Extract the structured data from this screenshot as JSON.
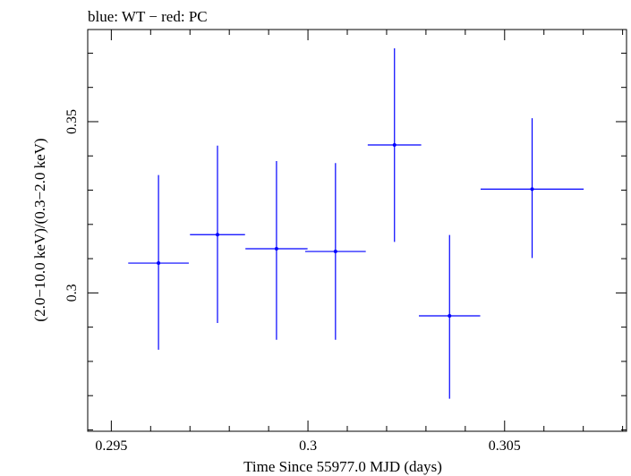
{
  "chart_data": {
    "type": "scatter",
    "title": "blue: WT − red: PC",
    "xlabel": "Time Since 55977.0 MJD (days)",
    "ylabel": "(2.0−10.0 keV)/(0.3−2.0 keV)",
    "xlim": [
      0.2944,
      0.3081
    ],
    "ylim": [
      0.2596,
      0.3769
    ],
    "x_ticks": [
      {
        "value": 0.295,
        "label": "0.295"
      },
      {
        "value": 0.3,
        "label": "0.3"
      },
      {
        "value": 0.305,
        "label": "0.305"
      }
    ],
    "y_ticks": [
      {
        "value": 0.3,
        "label": "0.3"
      },
      {
        "value": 0.35,
        "label": "0.35"
      }
    ],
    "series": [
      {
        "name": "WT",
        "color": "#0000ff",
        "points": [
          {
            "x": 0.2962,
            "y": 0.3087,
            "xerr": 0.00077,
            "yerr_low": 0.0253,
            "yerr_high": 0.0257
          },
          {
            "x": 0.2977,
            "y": 0.317,
            "xerr": 0.0007,
            "yerr_low": 0.0258,
            "yerr_high": 0.026
          },
          {
            "x": 0.2992,
            "y": 0.3129,
            "xerr": 0.00079,
            "yerr_low": 0.0266,
            "yerr_high": 0.0256
          },
          {
            "x": 0.3007,
            "y": 0.3121,
            "xerr": 0.00077,
            "yerr_low": 0.0258,
            "yerr_high": 0.0258
          },
          {
            "x": 0.3022,
            "y": 0.3432,
            "xerr": 0.00068,
            "yerr_low": 0.0283,
            "yerr_high": 0.0282
          },
          {
            "x": 0.3036,
            "y": 0.2933,
            "xerr": 0.00078,
            "yerr_low": 0.0242,
            "yerr_high": 0.0236
          },
          {
            "x": 0.3057,
            "y": 0.3303,
            "xerr": 0.00131,
            "yerr_low": 0.0201,
            "yerr_high": 0.0207
          }
        ]
      }
    ]
  }
}
